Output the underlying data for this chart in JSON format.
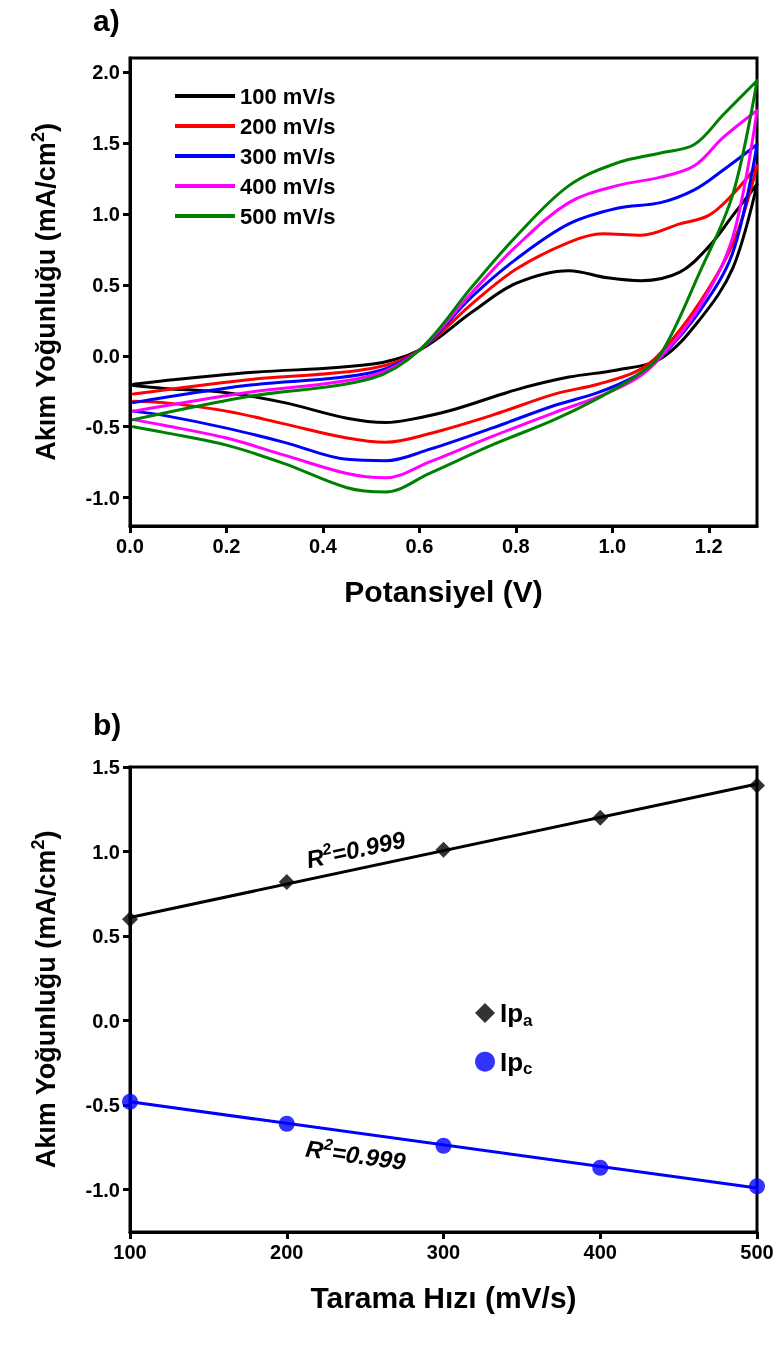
{
  "chart_data": [
    {
      "type": "line",
      "title": "a)",
      "xlabel": "Potansiyel (V)",
      "ylabel": "Akım Yoğunluğu (mA/cm$^{2}$)",
      "xlim": [
        0,
        1.3
      ],
      "xticks": [
        {
          "value": 0,
          "label": "0.0"
        },
        {
          "value": 0.2,
          "label": "0.2"
        },
        {
          "value": 0.4,
          "label": "0.4"
        },
        {
          "value": 0.6,
          "label": "0.6"
        },
        {
          "value": 0.8,
          "label": "0.8"
        },
        {
          "value": 1,
          "label": "1.0"
        },
        {
          "value": 1.2,
          "label": "1.2"
        }
      ],
      "ylim": [
        -1.2,
        2.1
      ],
      "yticks": [
        {
          "value": -1,
          "label": "-1.0"
        },
        {
          "value": -0.5,
          "label": "-0.5"
        },
        {
          "value": 0,
          "label": "0.0"
        },
        {
          "value": 0.5,
          "label": "0.5"
        },
        {
          "value": 1,
          "label": "1.0"
        },
        {
          "value": 1.5,
          "label": "1.5"
        },
        {
          "value": 2,
          "label": "2.0"
        }
      ],
      "legend": "top left",
      "series": [
        {
          "name": "100 mV/s",
          "color": "#000000",
          "x": [
            0.007,
            0.24,
            0.5,
            0.6,
            0.71,
            0.8,
            0.91,
            0.99,
            1.06,
            1.14,
            1.2,
            1.25,
            1.3,
            1.25,
            1.18,
            1.1,
            1.01,
            0.91,
            0.8,
            0.67,
            0.58,
            0.53,
            0.45,
            0.32,
            0.2,
            0.07,
            0.007
          ],
          "values": [
            -0.2,
            -0.12,
            -0.06,
            0.04,
            0.31,
            0.51,
            0.6,
            0.55,
            0.53,
            0.59,
            0.77,
            0.99,
            1.21,
            0.62,
            0.25,
            -0.02,
            -0.1,
            -0.15,
            -0.24,
            -0.38,
            -0.45,
            -0.47,
            -0.44,
            -0.33,
            -0.26,
            -0.23,
            -0.21
          ]
        },
        {
          "name": "200 mV/s",
          "color": "#ff0000",
          "x": [
            0.007,
            0.24,
            0.5,
            0.6,
            0.71,
            0.8,
            0.91,
            0.98,
            1.06,
            1.14,
            1.2,
            1.25,
            1.3,
            1.25,
            1.18,
            1.1,
            1.05,
            0.97,
            0.88,
            0.75,
            0.62,
            0.53,
            0.45,
            0.32,
            0.2,
            0.07,
            0.007
          ],
          "values": [
            -0.27,
            -0.17,
            -0.09,
            0.04,
            0.37,
            0.61,
            0.8,
            0.86,
            0.85,
            0.93,
            0.99,
            1.14,
            1.34,
            0.79,
            0.37,
            0.02,
            -0.11,
            -0.2,
            -0.27,
            -0.42,
            -0.55,
            -0.61,
            -0.58,
            -0.48,
            -0.39,
            -0.33,
            -0.32
          ]
        },
        {
          "name": "300 mV/s",
          "color": "#0000ff",
          "x": [
            0.007,
            0.24,
            0.5,
            0.6,
            0.71,
            0.8,
            0.91,
            1.01,
            1.1,
            1.17,
            1.23,
            1.3,
            1.25,
            1.18,
            1.1,
            1.05,
            0.97,
            0.88,
            0.75,
            0.62,
            0.53,
            0.45,
            0.32,
            0.2,
            0.07,
            0.007
          ],
          "values": [
            -0.33,
            -0.21,
            -0.12,
            0.04,
            0.42,
            0.68,
            0.93,
            1.04,
            1.08,
            1.17,
            1.31,
            1.49,
            0.73,
            0.31,
            -0.01,
            -0.14,
            -0.26,
            -0.35,
            -0.51,
            -0.66,
            -0.74,
            -0.73,
            -0.61,
            -0.51,
            -0.42,
            -0.39
          ]
        },
        {
          "name": "400 mV/s",
          "color": "#ff00ff",
          "x": [
            0.007,
            0.24,
            0.5,
            0.6,
            0.71,
            0.8,
            0.91,
            1.01,
            1.1,
            1.17,
            1.23,
            1.3,
            1.25,
            1.18,
            1.1,
            1.05,
            0.97,
            0.88,
            0.75,
            0.62,
            0.53,
            0.45,
            0.32,
            0.2,
            0.07,
            0.007
          ],
          "values": [
            -0.39,
            -0.26,
            -0.14,
            0.04,
            0.45,
            0.77,
            1.08,
            1.2,
            1.26,
            1.34,
            1.54,
            1.73,
            0.84,
            0.34,
            -0.01,
            -0.16,
            -0.29,
            -0.4,
            -0.57,
            -0.75,
            -0.86,
            -0.83,
            -0.7,
            -0.58,
            -0.49,
            -0.45
          ]
        },
        {
          "name": "500 mV/s",
          "color": "#008000",
          "x": [
            0.007,
            0.24,
            0.5,
            0.6,
            0.71,
            0.8,
            0.91,
            1.01,
            1.1,
            1.17,
            1.23,
            1.3,
            1.25,
            1.18,
            1.1,
            1.05,
            0.97,
            0.88,
            0.75,
            0.62,
            0.53,
            0.45,
            0.32,
            0.2,
            0.07,
            0.007
          ],
          "values": [
            -0.45,
            -0.29,
            -0.16,
            0.04,
            0.49,
            0.84,
            1.2,
            1.36,
            1.43,
            1.49,
            1.7,
            1.94,
            1.14,
            0.58,
            0.01,
            -0.14,
            -0.3,
            -0.45,
            -0.63,
            -0.83,
            -0.96,
            -0.93,
            -0.76,
            -0.63,
            -0.54,
            -0.5
          ]
        }
      ]
    },
    {
      "type": "scatter",
      "title": "b)",
      "xlabel": "Tarama Hızı (mV/s)",
      "ylabel": "Akım Yoğunluğu (mA/cm$^{2}$)",
      "xlim": [
        100,
        500
      ],
      "xticks": [
        100,
        200,
        300,
        400,
        500
      ],
      "ylim": [
        -1.25,
        1.5
      ],
      "yticks": [
        {
          "value": -1,
          "label": "-1.0"
        },
        {
          "value": -0.5,
          "label": "-0.5"
        },
        {
          "value": 0,
          "label": "0.0"
        },
        {
          "value": 0.5,
          "label": "0.5"
        },
        {
          "value": 1,
          "label": "1.0"
        },
        {
          "value": 1.5,
          "label": "1.5"
        }
      ],
      "legend": "right",
      "annotations": [
        "R$^{2}$=0.999",
        "R$^{2}$=0.999"
      ],
      "series": [
        {
          "type": "line",
          "color": "#000000",
          "x": [
            100,
            500
          ],
          "values": [
            0.61,
            1.4
          ]
        },
        {
          "type": "line",
          "color": "#0000ff",
          "x": [
            100,
            500
          ],
          "values": [
            -0.48,
            -0.99
          ]
        },
        {
          "name": "Ip$_{a}$",
          "color": "#000000",
          "marker": "diamond",
          "x": [
            100,
            200,
            300,
            400,
            500
          ],
          "values": [
            0.6,
            0.82,
            1.01,
            1.2,
            1.39
          ]
        },
        {
          "name": "Ip$_{c}$",
          "color": "#0000ff",
          "marker": "circle",
          "x": [
            100,
            200,
            300,
            400,
            500
          ],
          "values": [
            -0.48,
            -0.61,
            -0.74,
            -0.87,
            -0.98
          ]
        }
      ]
    }
  ]
}
